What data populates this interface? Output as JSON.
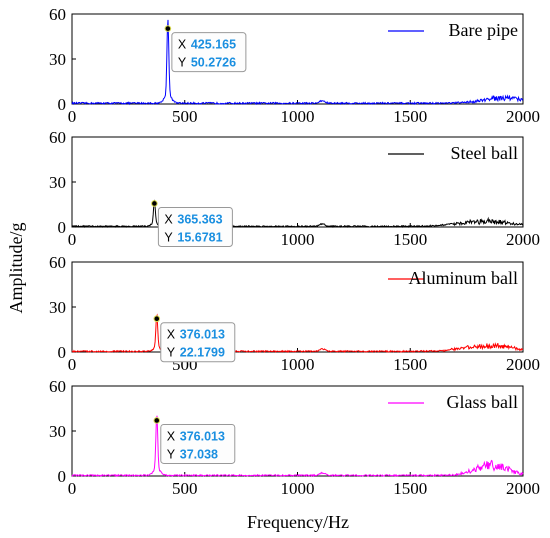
{
  "figure": {
    "xlabel": "Frequency/Hz",
    "ylabel": "Amplitude/g"
  },
  "chart_data": [
    {
      "type": "line",
      "xlabel": "",
      "ylabel": "",
      "xlim": [
        0,
        2000
      ],
      "ylim": [
        0,
        60
      ],
      "xticks": [
        0,
        500,
        1000,
        1500,
        2000
      ],
      "yticks": [
        0,
        30,
        60
      ],
      "grid": false,
      "legend_position": "top-right",
      "series": [
        {
          "name": "Bare pipe",
          "color": "#0000ff"
        }
      ],
      "peak": {
        "x": 425.165,
        "y": 50.2726
      },
      "datatip": {
        "x_key": "X",
        "y_key": "Y",
        "x_value": "425.165",
        "y_value": "50.2726"
      },
      "noise_floor": 1.2,
      "high_freq_hump": {
        "center": 1920,
        "width": 90,
        "amplitude": 5.5
      }
    },
    {
      "type": "line",
      "xlabel": "",
      "ylabel": "",
      "xlim": [
        0,
        2000
      ],
      "ylim": [
        0,
        60
      ],
      "xticks": [
        0,
        500,
        1000,
        1500,
        2000
      ],
      "yticks": [
        0,
        30,
        60
      ],
      "grid": false,
      "legend_position": "top-right",
      "series": [
        {
          "name": "Steel ball",
          "color": "#000000"
        }
      ],
      "peak": {
        "x": 365.363,
        "y": 15.6781
      },
      "datatip": {
        "x_key": "X",
        "y_key": "Y",
        "x_value": "365.363",
        "y_value": "15.6781"
      },
      "noise_floor": 1.0,
      "high_freq_hump": {
        "center": 1830,
        "width": 110,
        "amplitude": 5.0
      }
    },
    {
      "type": "line",
      "xlabel": "",
      "ylabel": "",
      "xlim": [
        0,
        2000
      ],
      "ylim": [
        0,
        60
      ],
      "xticks": [
        0,
        500,
        1000,
        1500,
        2000
      ],
      "yticks": [
        0,
        30,
        60
      ],
      "grid": false,
      "legend_position": "top-right",
      "series": [
        {
          "name": "Aluminum ball",
          "color": "#ff0000"
        }
      ],
      "peak": {
        "x": 376.013,
        "y": 22.1799
      },
      "datatip": {
        "x_key": "X",
        "y_key": "Y",
        "x_value": "376.013",
        "y_value": "22.1799"
      },
      "noise_floor": 1.0,
      "high_freq_hump": {
        "center": 1850,
        "width": 110,
        "amplitude": 5.5
      }
    },
    {
      "type": "line",
      "xlabel": "",
      "ylabel": "",
      "xlim": [
        0,
        2000
      ],
      "ylim": [
        0,
        60
      ],
      "xticks": [
        0,
        500,
        1000,
        1500,
        2000
      ],
      "yticks": [
        0,
        30,
        60
      ],
      "grid": false,
      "legend_position": "top-right",
      "series": [
        {
          "name": "Glass ball",
          "color": "#ff00ff"
        }
      ],
      "peak": {
        "x": 376.013,
        "y": 37.038
      },
      "datatip": {
        "x_key": "X",
        "y_key": "Y",
        "x_value": "376.013",
        "y_value": "37.038"
      },
      "noise_floor": 1.0,
      "high_freq_hump": {
        "center": 1860,
        "width": 70,
        "amplitude": 10.0
      }
    }
  ]
}
